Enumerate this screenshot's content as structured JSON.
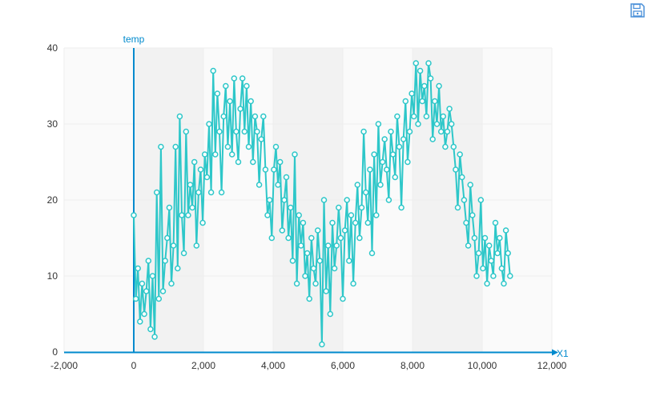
{
  "toolbar": {
    "save_icon": "save-icon"
  },
  "colors": {
    "series": "#2ec7c9",
    "axis": "#008acd",
    "band_light": "#fafafa",
    "band_dark": "#f2f2f2",
    "grid": "#eeeeee",
    "label": "#333333",
    "point_fill": "#ffffff"
  },
  "chart_data": {
    "type": "line",
    "xlabel": "X1",
    "ylabel": "temp",
    "xlim": [
      -2000,
      12000
    ],
    "ylim": [
      0,
      40
    ],
    "xticks": [
      -2000,
      0,
      2000,
      4000,
      6000,
      8000,
      10000,
      12000
    ],
    "xtick_labels": [
      "-2,000",
      "0",
      "2,000",
      "4,000",
      "6,000",
      "8,000",
      "10,000",
      "12,000"
    ],
    "yticks": [
      0,
      10,
      20,
      30,
      40
    ],
    "ytick_labels": [
      "0",
      "10",
      "20",
      "30",
      "40"
    ],
    "grid": true,
    "legend": "none",
    "series": [
      {
        "x": [
          0,
          60,
          120,
          180,
          240,
          300,
          360,
          420,
          480,
          540,
          600,
          660,
          720,
          780,
          840,
          900,
          960,
          1020,
          1080,
          1140,
          1200,
          1260,
          1320,
          1380,
          1440,
          1500,
          1560,
          1620,
          1680,
          1740,
          1800,
          1860,
          1920,
          1980,
          2040,
          2100,
          2160,
          2220,
          2280,
          2340,
          2400,
          2460,
          2520,
          2580,
          2640,
          2700,
          2760,
          2820,
          2880,
          2940,
          3000,
          3060,
          3120,
          3180,
          3240,
          3300,
          3360,
          3420,
          3480,
          3540,
          3600,
          3660,
          3720,
          3780,
          3840,
          3900,
          3960,
          4020,
          4080,
          4140,
          4200,
          4260,
          4320,
          4380,
          4440,
          4500,
          4560,
          4620,
          4680,
          4740,
          4800,
          4860,
          4920,
          4980,
          5040,
          5100,
          5160,
          5220,
          5280,
          5340,
          5400,
          5460,
          5520,
          5580,
          5640,
          5700,
          5760,
          5820,
          5880,
          5940,
          6000,
          6060,
          6120,
          6180,
          6240,
          6300,
          6360,
          6420,
          6480,
          6540,
          6600,
          6660,
          6720,
          6780,
          6840,
          6900,
          6960,
          7020,
          7080,
          7140,
          7200,
          7260,
          7320,
          7380,
          7440,
          7500,
          7560,
          7620,
          7680,
          7740,
          7800,
          7860,
          7920,
          7980,
          8040,
          8100,
          8160,
          8220,
          8280,
          8340,
          8400,
          8460,
          8520,
          8580,
          8640,
          8700,
          8760,
          8820,
          8880,
          8940,
          9000,
          9060,
          9120,
          9180,
          9240,
          9300,
          9360,
          9420,
          9480,
          9540,
          9600,
          9660,
          9720,
          9780,
          9840,
          9900,
          9960,
          10020,
          10080,
          10140,
          10200,
          10260,
          10320,
          10380,
          10440,
          10500,
          10560,
          10620,
          10680,
          10740,
          10800
        ],
        "y": [
          18,
          7,
          11,
          4,
          9,
          5,
          8,
          12,
          3,
          10,
          2,
          21,
          7,
          27,
          8,
          12,
          15,
          19,
          9,
          14,
          27,
          11,
          31,
          18,
          13,
          29,
          18,
          22,
          19,
          25,
          14,
          21,
          24,
          17,
          26,
          23,
          30,
          21,
          37,
          26,
          34,
          29,
          21,
          31,
          35,
          27,
          33,
          26,
          36,
          29,
          25,
          32,
          36,
          29,
          35,
          27,
          33,
          25,
          31,
          29,
          22,
          28,
          31,
          24,
          18,
          20,
          15,
          24,
          27,
          22,
          25,
          16,
          20,
          23,
          15,
          19,
          12,
          26,
          9,
          18,
          14,
          17,
          10,
          13,
          7,
          15,
          11,
          9,
          16,
          12,
          1,
          20,
          8,
          14,
          5,
          17,
          11,
          14,
          19,
          15,
          7,
          16,
          20,
          12,
          18,
          9,
          17,
          22,
          15,
          19,
          29,
          21,
          17,
          24,
          13,
          26,
          18,
          30,
          22,
          25,
          28,
          24,
          20,
          29,
          26,
          23,
          31,
          27,
          19,
          28,
          33,
          25,
          29,
          34,
          31,
          38,
          30,
          37,
          33,
          35,
          31,
          38,
          36,
          28,
          33,
          30,
          35,
          29,
          31,
          27,
          29,
          32,
          30,
          27,
          24,
          19,
          26,
          23,
          20,
          17,
          14,
          22,
          18,
          15,
          10,
          13,
          20,
          11,
          15,
          9,
          14,
          12,
          10,
          17,
          13,
          15,
          11,
          9,
          16,
          13,
          10
        ]
      }
    ]
  }
}
